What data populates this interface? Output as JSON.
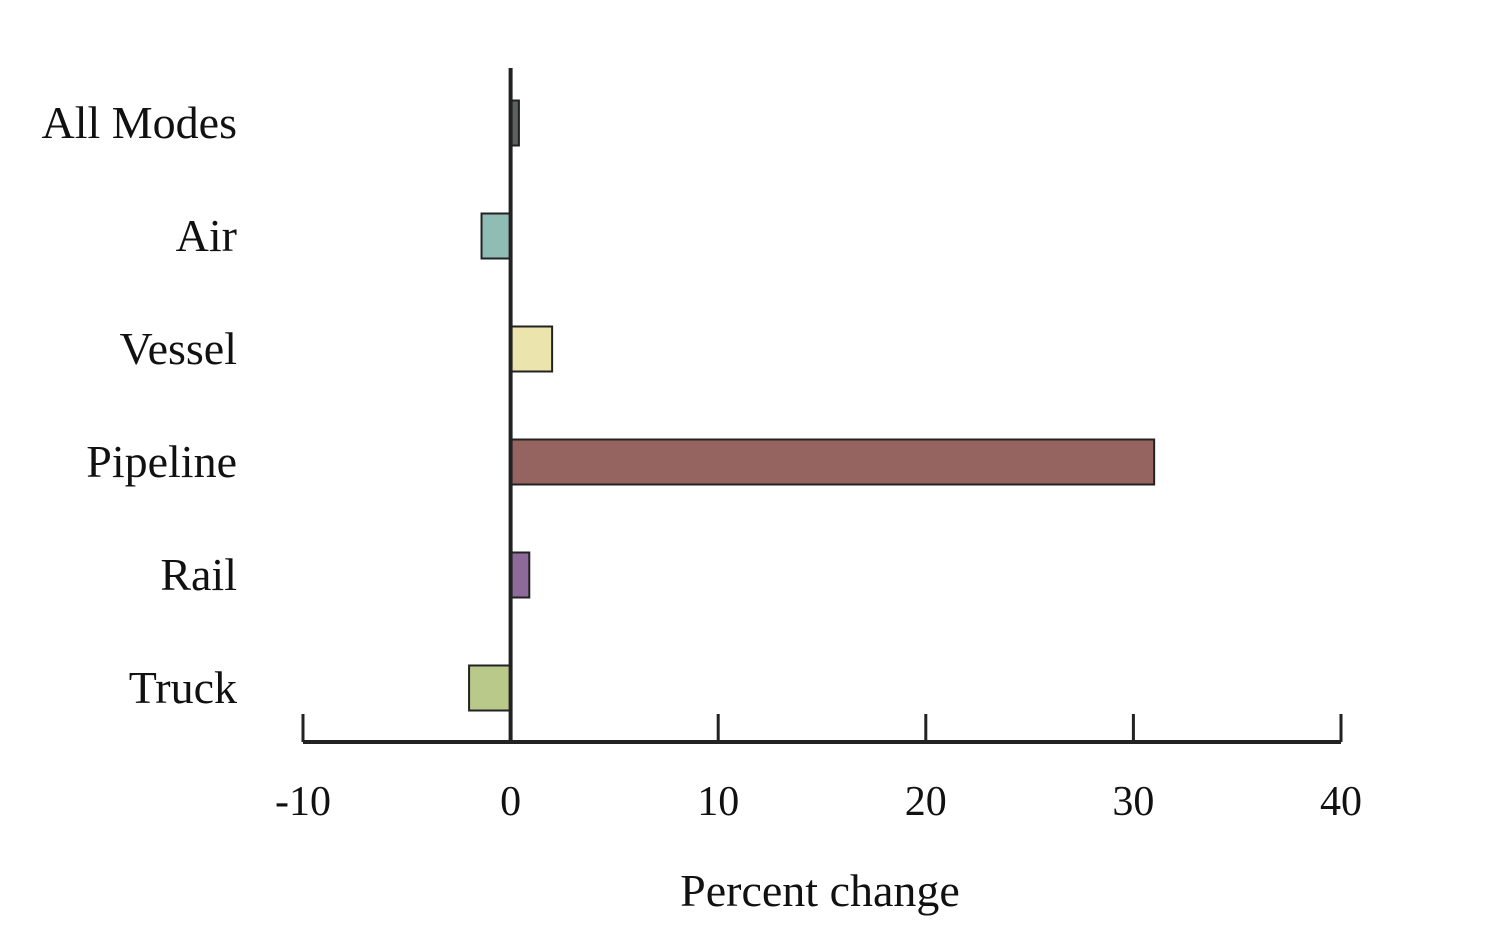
{
  "chart_data": {
    "type": "bar",
    "orientation": "horizontal",
    "categories": [
      "All Modes",
      "Air",
      "Vessel",
      "Pipeline",
      "Rail",
      "Truck"
    ],
    "values": [
      0.4,
      -1.4,
      2.0,
      31.0,
      0.9,
      -2.0
    ],
    "colors": [
      "#5b6161",
      "#8fbdb5",
      "#ebe4ad",
      "#956460",
      "#8e6a9a",
      "#b9c98a"
    ],
    "xlabel": "Percent change",
    "ylabel": "",
    "xlim": [
      -10,
      40
    ],
    "xticks": [
      -10,
      0,
      10,
      20,
      30,
      40
    ],
    "xtick_labels": [
      "-10",
      "0",
      "10",
      "20",
      "30",
      "40"
    ],
    "grid": false
  }
}
